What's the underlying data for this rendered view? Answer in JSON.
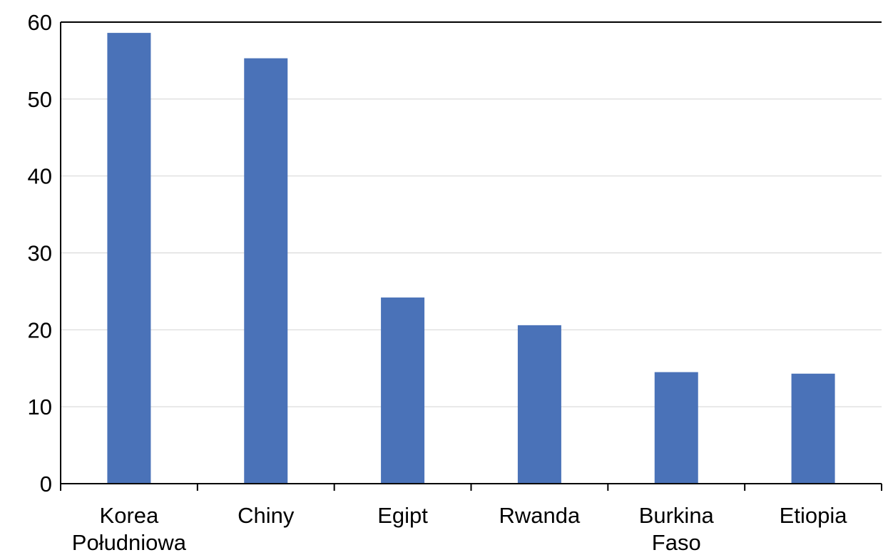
{
  "chart_data": {
    "type": "bar",
    "categories": [
      [
        "Korea",
        "Południowa"
      ],
      [
        "Chiny"
      ],
      [
        "Egipt"
      ],
      [
        "Rwanda"
      ],
      [
        "Burkina",
        "Faso"
      ],
      [
        "Etiopia"
      ]
    ],
    "values": [
      58.6,
      55.3,
      24.2,
      20.6,
      14.5,
      14.3
    ],
    "ylim": [
      0,
      60
    ],
    "yticks": [
      "0",
      "10",
      "20",
      "30",
      "40",
      "50",
      "60"
    ],
    "grid": true,
    "colors": {
      "bar": "#4a72b8",
      "grid": "#d9d9d9",
      "axis": "#000000"
    }
  }
}
